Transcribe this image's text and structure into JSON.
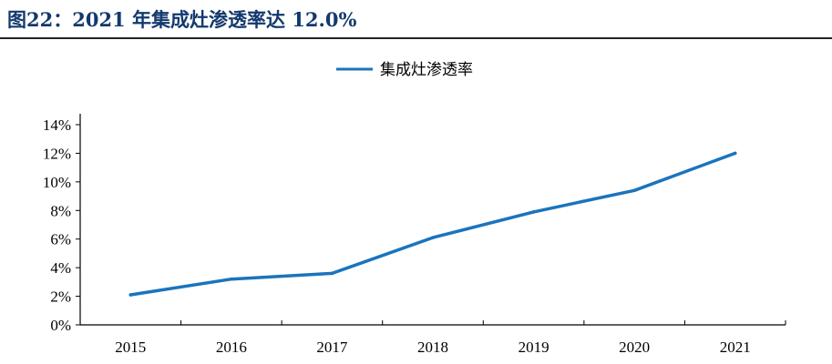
{
  "figure_title": "图22：2021 年集成灶渗透率达 12.0%",
  "chart_data": {
    "type": "line",
    "categories": [
      "2015",
      "2016",
      "2017",
      "2018",
      "2019",
      "2020",
      "2021"
    ],
    "series": [
      {
        "name": "集成灶渗透率",
        "values": [
          2.1,
          3.2,
          3.6,
          6.1,
          7.9,
          9.4,
          12.0
        ],
        "color": "#1a74bd"
      }
    ],
    "y_ticks": [
      "0%",
      "2%",
      "4%",
      "6%",
      "8%",
      "10%",
      "12%",
      "14%"
    ],
    "ylim": [
      0,
      14
    ],
    "y_unit": "%",
    "grid": false,
    "legend_position": "top-center"
  }
}
